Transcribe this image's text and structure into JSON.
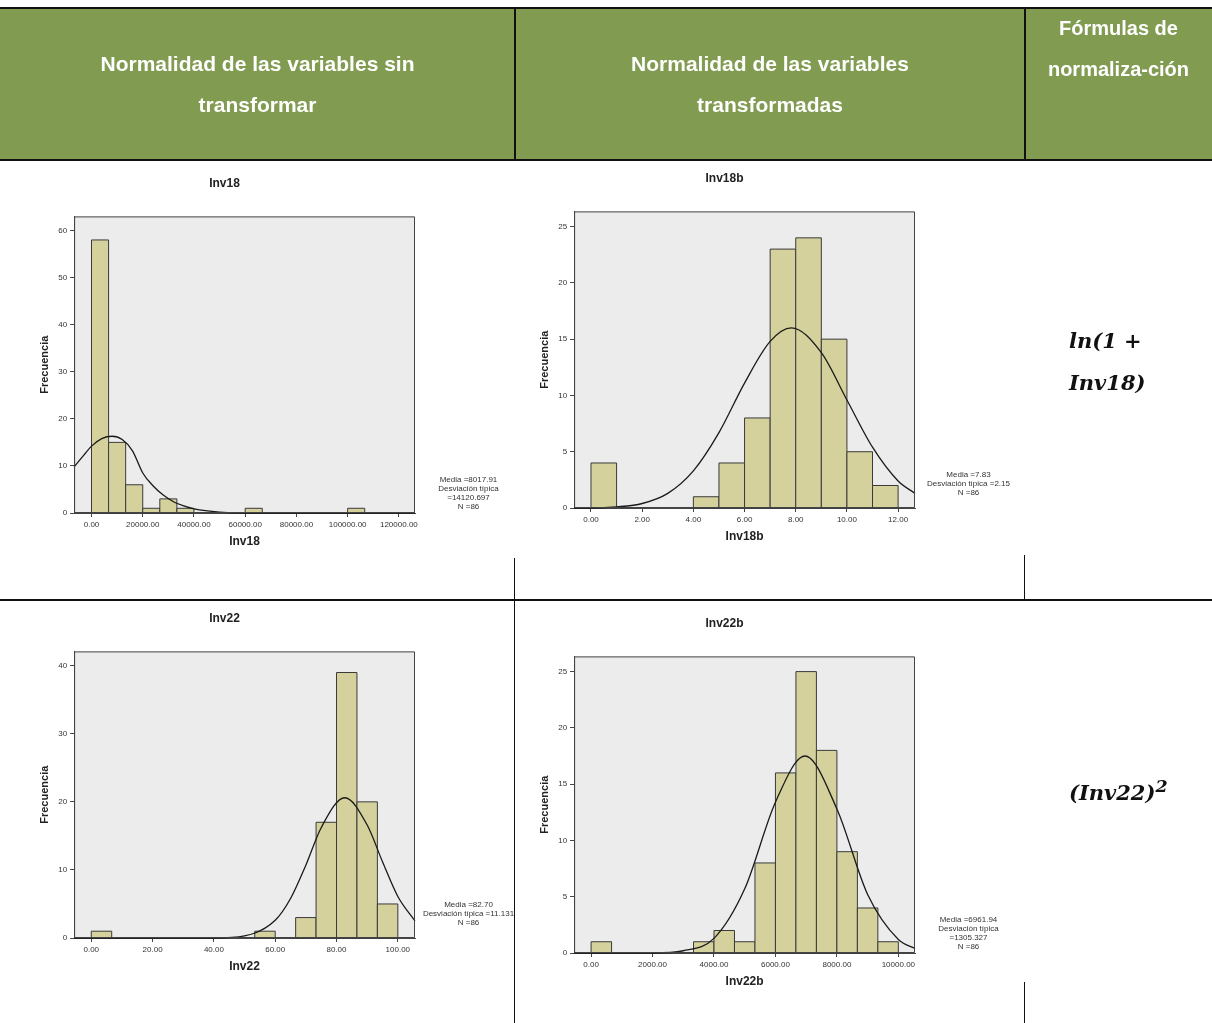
{
  "chart_data": [
    {
      "type": "other",
      "annotations": [
        "Normalidad de las variables sin transformar",
        "Normalidad de las variables transformadas",
        "Fórmulas de normaliza-ción"
      ]
    },
    {
      "type": "histogram",
      "title": "Inv18",
      "xlabel": "Inv18",
      "ylabel": "Frecuencia",
      "color": "#d4d19d",
      "bins": [
        0,
        6666.67,
        13333.33,
        20000,
        26666.67,
        33333.33,
        40000,
        46666.67,
        53333.33,
        60000,
        66666.67,
        73333.33,
        80000,
        86666.67,
        93333.33,
        100000,
        106666.67
      ],
      "values": [
        58,
        15,
        6,
        1,
        3,
        1,
        0,
        0,
        0,
        1,
        0,
        0,
        0,
        0,
        0,
        1
      ],
      "series": [
        {
          "type": "line",
          "color": "#1a1a1a",
          "x": [
            -6800,
            -3000,
            0,
            4000,
            8000,
            12000,
            16000,
            20000,
            24000,
            28000,
            32000,
            36000,
            40000,
            50000,
            60000,
            126300
          ],
          "values": [
            9.8,
            12.3,
            14.2,
            15.8,
            16.3,
            15.6,
            13.2,
            8.5,
            5.8,
            3.8,
            2.4,
            1.5,
            0.9,
            0.2,
            0,
            0
          ]
        }
      ],
      "xlim": [
        -6800,
        126300
      ],
      "xticks": [
        {
          "value": 0,
          "label": "0.00"
        },
        {
          "value": 20000,
          "label": "20000.00"
        },
        {
          "value": 40000,
          "label": "40000.00"
        },
        {
          "value": 60000,
          "label": "60000.00"
        },
        {
          "value": 80000,
          "label": "80000.00"
        },
        {
          "value": 100000,
          "label": "100000.00"
        },
        {
          "value": 120000,
          "label": "120000.00"
        }
      ],
      "ylim": [
        0,
        63
      ],
      "yticks": [
        0,
        10,
        20,
        30,
        40,
        50,
        60
      ],
      "annotations": [
        "Media =8017.91",
        "Desviación típica =14120.697",
        "N =86"
      ]
    },
    {
      "type": "histogram",
      "title": "Inv18b",
      "xlabel": "Inv18b",
      "ylabel": "Frecuencia",
      "color": "#d4d19d",
      "bins": [
        0,
        1,
        2,
        3,
        4,
        5,
        6,
        7,
        8,
        9,
        10,
        11,
        12
      ],
      "values": [
        4,
        0,
        0,
        0,
        1,
        4,
        8,
        23,
        24,
        15,
        5,
        2
      ],
      "series": [
        {
          "type": "line",
          "color": "#1a1a1a",
          "x": [
            -0.66,
            0,
            1,
            2,
            3,
            4,
            5,
            6,
            7,
            7.83,
            9,
            10,
            11,
            12,
            12.66
          ],
          "values": [
            0,
            0,
            0.1,
            0.4,
            1.3,
            3.3,
            6.7,
            11.1,
            14.8,
            16,
            13.8,
            9.6,
            5.4,
            2.4,
            1.3
          ]
        }
      ],
      "xlim": [
        -0.66,
        12.66
      ],
      "xticks": [
        {
          "value": 0,
          "label": "0.00"
        },
        {
          "value": 2,
          "label": "2.00"
        },
        {
          "value": 4,
          "label": "4.00"
        },
        {
          "value": 6,
          "label": "6.00"
        },
        {
          "value": 8,
          "label": "8.00"
        },
        {
          "value": 10,
          "label": "10.00"
        },
        {
          "value": 12,
          "label": "12.00"
        }
      ],
      "ylim": [
        0,
        26.35
      ],
      "yticks": [
        0,
        5,
        10,
        15,
        20,
        25
      ],
      "annotations": [
        "Media =7.83",
        "Desviación típica =2.15",
        "N =86"
      ]
    },
    {
      "type": "other",
      "annotations": [
        "ln(1 + Inv18)"
      ]
    },
    {
      "type": "histogram",
      "title": "Inv22",
      "xlabel": "Inv22",
      "ylabel": "Frecuencia",
      "color": "#d4d19d",
      "bins": [
        0,
        6.67,
        13.33,
        20,
        26.67,
        33.33,
        40,
        46.67,
        53.33,
        60,
        66.67,
        73.33,
        80,
        86.67,
        93.33,
        100
      ],
      "values": [
        1,
        0,
        0,
        0,
        0,
        0,
        0,
        0,
        1,
        0,
        3,
        17,
        39,
        20,
        5
      ],
      "series": [
        {
          "type": "line",
          "color": "#1a1a1a",
          "x": [
            -5.6,
            30,
            40,
            50,
            60,
            65,
            70,
            75,
            82.7,
            90,
            95,
            100,
            105.6
          ],
          "values": [
            0,
            0,
            0,
            0.3,
            2.6,
            5.8,
            10.7,
            16.2,
            20.6,
            16.6,
            11.2,
            6.1,
            2.5
          ]
        }
      ],
      "xlim": [
        -5.6,
        105.6
      ],
      "xticks": [
        {
          "value": 0,
          "label": "0.00"
        },
        {
          "value": 20,
          "label": "20.00"
        },
        {
          "value": 40,
          "label": "40.00"
        },
        {
          "value": 60,
          "label": "60.00"
        },
        {
          "value": 80,
          "label": "80.00"
        },
        {
          "value": 100,
          "label": "100.00"
        }
      ],
      "ylim": [
        0,
        42.1
      ],
      "yticks": [
        0,
        10,
        20,
        30,
        40
      ],
      "annotations": [
        "Media =82.70",
        "Desviación típica =11.131",
        "N =86"
      ]
    },
    {
      "type": "histogram",
      "title": "Inv22b",
      "xlabel": "Inv22b",
      "ylabel": "Frecuencia",
      "color": "#d4d19d",
      "bins": [
        0,
        666.67,
        1333.33,
        2000,
        2666.67,
        3333.33,
        4000,
        4666.67,
        5333.33,
        6000,
        6666.67,
        7333.33,
        8000,
        8666.67,
        9333.33,
        10000
      ],
      "values": [
        1,
        0,
        0,
        0,
        0,
        1,
        2,
        1,
        8,
        16,
        25,
        18,
        9,
        4,
        1
      ],
      "series": [
        {
          "type": "line",
          "color": "#1a1a1a",
          "x": [
            -553,
            1000,
            2000,
            3000,
            4000,
            5000,
            6000,
            6962,
            8000,
            9000,
            10000,
            10542
          ],
          "values": [
            0,
            0,
            0,
            0.2,
            1.3,
            5.7,
            13.4,
            17.5,
            12.8,
            5.2,
            1.2,
            0.4
          ]
        }
      ],
      "xlim": [
        -553,
        10542
      ],
      "xticks": [
        {
          "value": 0,
          "label": "0.00"
        },
        {
          "value": 2000,
          "label": "2000.00"
        },
        {
          "value": 4000,
          "label": "4000.00"
        },
        {
          "value": 6000,
          "label": "6000.00"
        },
        {
          "value": 8000,
          "label": "8000.00"
        },
        {
          "value": 10000,
          "label": "10000.00"
        }
      ],
      "ylim": [
        0,
        26.35
      ],
      "yticks": [
        0,
        5,
        10,
        15,
        20,
        25
      ],
      "annotations": [
        "Media =6961.94",
        "Desviación típica =1305.327",
        "N =86"
      ]
    },
    {
      "type": "other",
      "annotations": [
        "(Inv22)$^{2}$"
      ]
    }
  ]
}
